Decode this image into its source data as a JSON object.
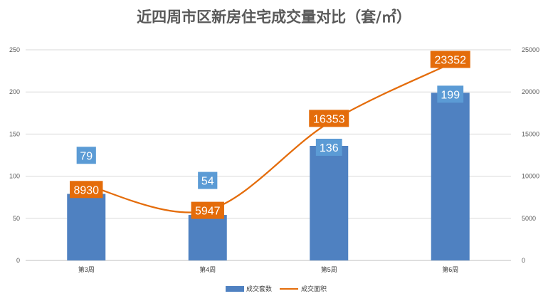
{
  "colors": {
    "bar": "#4f81c1",
    "line": "#e46c0a",
    "bar_label_bg": "#5b9bd5",
    "line_label_bg": "#e46c0a",
    "grid": "#d9d9d9",
    "axis": "#bfbfbf",
    "text": "#595959"
  },
  "chart_data": {
    "type": "bar",
    "title": "近四周市区新房住宅成交量对比（套/㎡）",
    "categories": [
      "第3周",
      "第4周",
      "第5周",
      "第6周"
    ],
    "series": [
      {
        "name": "成交套数",
        "type": "bar",
        "axis": "left",
        "values": [
          79,
          54,
          136,
          199
        ]
      },
      {
        "name": "成交面积",
        "type": "line",
        "axis": "right",
        "smooth": true,
        "values": [
          8930,
          5947,
          16353,
          23352
        ]
      }
    ],
    "y_left": {
      "min": 0,
      "max": 250,
      "ticks": [
        "0",
        "50",
        "100",
        "150",
        "200",
        "250"
      ]
    },
    "y_right": {
      "min": 0,
      "max": 25000,
      "ticks": [
        "0",
        "5000",
        "10000",
        "15000",
        "20000",
        "25000"
      ]
    },
    "grid": true,
    "legend": "bottom",
    "data_labels": true
  }
}
